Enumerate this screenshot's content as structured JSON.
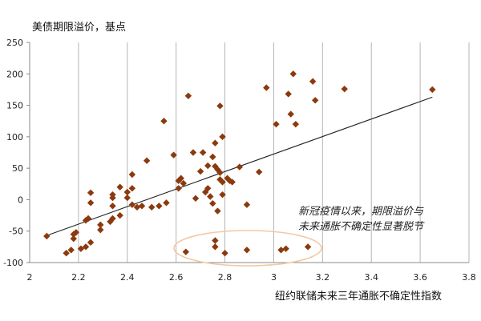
{
  "chart_data": {
    "type": "scatter",
    "title": "",
    "ylabel": "美债期限溢价，基点",
    "xlabel": "纽约联储未来三年通胀不确定性指数",
    "xlim": [
      2,
      3.8
    ],
    "ylim": [
      -100,
      250
    ],
    "x_ticks": [
      "2",
      "2.2",
      "2.4",
      "2.6",
      "2.8",
      "3",
      "3.2",
      "3.4",
      "3.6",
      "3.8"
    ],
    "y_ticks": [
      "250",
      "200",
      "150",
      "100",
      "50",
      "0",
      "-50",
      "-100"
    ],
    "grid": "vertical",
    "marker_color": "#8B3A0E",
    "line_color": "#222222",
    "ellipse_color": "#F2C9A4",
    "annotation": [
      "新冠疫情以来，期限溢价与",
      "未来通胀不确定性显著脱节"
    ],
    "trendline": [
      [
        2.07,
        -57
      ],
      [
        3.65,
        163
      ]
    ],
    "points": [
      [
        2.07,
        -58
      ],
      [
        2.15,
        -85
      ],
      [
        2.17,
        -80
      ],
      [
        2.18,
        -55
      ],
      [
        2.18,
        -62
      ],
      [
        2.19,
        -52
      ],
      [
        2.21,
        -78
      ],
      [
        2.23,
        -33
      ],
      [
        2.23,
        -75
      ],
      [
        2.24,
        -30
      ],
      [
        2.25,
        -68
      ],
      [
        2.25,
        -5
      ],
      [
        2.25,
        11
      ],
      [
        2.29,
        -48
      ],
      [
        2.29,
        -40
      ],
      [
        2.33,
        -35
      ],
      [
        2.34,
        -30
      ],
      [
        2.34,
        -10
      ],
      [
        2.34,
        3
      ],
      [
        2.34,
        8
      ],
      [
        2.37,
        20
      ],
      [
        2.37,
        -25
      ],
      [
        2.4,
        12
      ],
      [
        2.4,
        3
      ],
      [
        2.42,
        -8
      ],
      [
        2.42,
        18
      ],
      [
        2.42,
        40
      ],
      [
        2.44,
        -12
      ],
      [
        2.46,
        -10
      ],
      [
        2.48,
        62
      ],
      [
        2.5,
        -12
      ],
      [
        2.53,
        -10
      ],
      [
        2.55,
        125
      ],
      [
        2.56,
        -5
      ],
      [
        2.59,
        71
      ],
      [
        2.61,
        18
      ],
      [
        2.61,
        30
      ],
      [
        2.62,
        34
      ],
      [
        2.63,
        26
      ],
      [
        2.64,
        -83
      ],
      [
        2.65,
        165
      ],
      [
        2.67,
        75
      ],
      [
        2.68,
        2
      ],
      [
        2.7,
        45
      ],
      [
        2.71,
        75
      ],
      [
        2.72,
        12
      ],
      [
        2.73,
        18
      ],
      [
        2.73,
        54
      ],
      [
        2.74,
        5
      ],
      [
        2.75,
        -6
      ],
      [
        2.75,
        68
      ],
      [
        2.76,
        90
      ],
      [
        2.76,
        -65
      ],
      [
        2.76,
        -75
      ],
      [
        2.76,
        53
      ],
      [
        2.77,
        -18
      ],
      [
        2.77,
        48
      ],
      [
        2.78,
        149
      ],
      [
        2.78,
        32
      ],
      [
        2.78,
        43
      ],
      [
        2.79,
        28
      ],
      [
        2.79,
        8
      ],
      [
        2.79,
        100
      ],
      [
        2.8,
        -85
      ],
      [
        2.81,
        34
      ],
      [
        2.82,
        30
      ],
      [
        2.83,
        28
      ],
      [
        2.86,
        52
      ],
      [
        2.89,
        -80
      ],
      [
        2.89,
        -8
      ],
      [
        2.94,
        44
      ],
      [
        2.97,
        178
      ],
      [
        3.01,
        120
      ],
      [
        3.03,
        -80
      ],
      [
        3.05,
        -78
      ],
      [
        3.06,
        168
      ],
      [
        3.07,
        136
      ],
      [
        3.08,
        200
      ],
      [
        3.09,
        120
      ],
      [
        3.14,
        -75
      ],
      [
        3.16,
        188
      ],
      [
        3.17,
        158
      ],
      [
        3.29,
        176
      ],
      [
        3.65,
        175
      ]
    ]
  }
}
